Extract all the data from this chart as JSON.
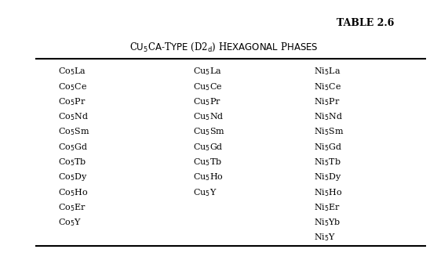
{
  "table_title": "TABLE 2.6",
  "subtitle": "Cu$_5$Ca-T$_{\\mathrm{YPE}}$ (D2$_d$) H$_{\\mathrm{EXAGONAL}}$ P$_{\\mathrm{HASES}}$",
  "col1": [
    "Co$_5$La",
    "Co$_5$Ce",
    "Co$_5$Pr",
    "Co$_5$Nd",
    "Co$_5$Sm",
    "Co$_5$Gd",
    "Co$_5$Tb",
    "Co$_5$Dy",
    "Co$_5$Ho",
    "Co$_5$Er",
    "Co$_5$Y"
  ],
  "col2": [
    "Cu$_5$La",
    "Cu$_5$Ce",
    "Cu$_5$Pr",
    "Cu$_5$Nd",
    "Cu$_5$Sm",
    "Cu$_5$Gd",
    "Cu$_5$Tb",
    "Cu$_5$Ho",
    "Cu$_5$Y",
    "",
    ""
  ],
  "col3": [
    "Ni$_5$La",
    "Ni$_5$Ce",
    "Ni$_5$Pr",
    "Ni$_5$Nd",
    "Ni$_5$Sm",
    "Ni$_5$Gd",
    "Ni$_5$Tb",
    "Ni$_5$Dy",
    "Ni$_5$Ho",
    "Ni$_5$Er",
    "Ni$_5$Yb",
    "Ni$_5$Y"
  ],
  "bg_color": "#ffffff",
  "text_color": "#000000",
  "figwidth": 5.71,
  "figheight": 3.32,
  "dpi": 100
}
